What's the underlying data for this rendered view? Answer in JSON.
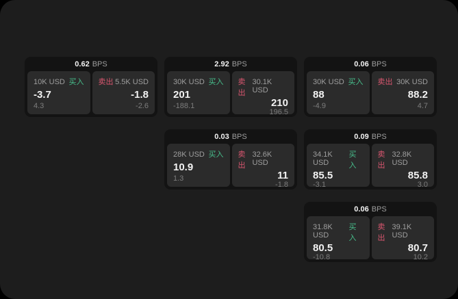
{
  "colors": {
    "page_bg": "#000000",
    "panel_bg": "#1d1d1d",
    "card_bg": "#131313",
    "tile_bg": "#2b2b2b",
    "label_gray": "#9e9e9e",
    "dim_gray": "#7d7d7d",
    "value_white": "#f2f2f2",
    "buy_green": "#47bd8b",
    "sell_red": "#d8566f"
  },
  "labels": {
    "bps_unit": "BPS",
    "buy": "买入",
    "sell": "卖出"
  },
  "cards": [
    {
      "row": 1,
      "col": 1,
      "bps": "0.62",
      "buy": {
        "amount": "10K USD",
        "price": "-3.7",
        "delta": "4.3"
      },
      "sell": {
        "amount": "5.5K USD",
        "price": "-1.8",
        "delta": "-2.6"
      }
    },
    {
      "row": 1,
      "col": 2,
      "bps": "2.92",
      "buy": {
        "amount": "30K USD",
        "price": "201",
        "delta": "-188.1"
      },
      "sell": {
        "amount": "30.1K USD",
        "price": "210",
        "delta": "196.5"
      }
    },
    {
      "row": 1,
      "col": 3,
      "bps": "0.06",
      "buy": {
        "amount": "30K USD",
        "price": "88",
        "delta": "-4.9"
      },
      "sell": {
        "amount": "30K USD",
        "price": "88.2",
        "delta": "4.7"
      }
    },
    {
      "row": 2,
      "col": 2,
      "bps": "0.03",
      "buy": {
        "amount": "28K USD",
        "price": "10.9",
        "delta": "1.3"
      },
      "sell": {
        "amount": "32.6K USD",
        "price": "11",
        "delta": "-1.8"
      }
    },
    {
      "row": 2,
      "col": 3,
      "bps": "0.09",
      "buy": {
        "amount": "34.1K USD",
        "price": "85.5",
        "delta": "-3.1"
      },
      "sell": {
        "amount": "32.8K USD",
        "price": "85.8",
        "delta": "3.0"
      }
    },
    {
      "row": 3,
      "col": 3,
      "bps": "0.06",
      "buy": {
        "amount": "31.8K USD",
        "price": "80.5",
        "delta": "-10.8"
      },
      "sell": {
        "amount": "39.1K USD",
        "price": "80.7",
        "delta": "10.2"
      }
    }
  ]
}
